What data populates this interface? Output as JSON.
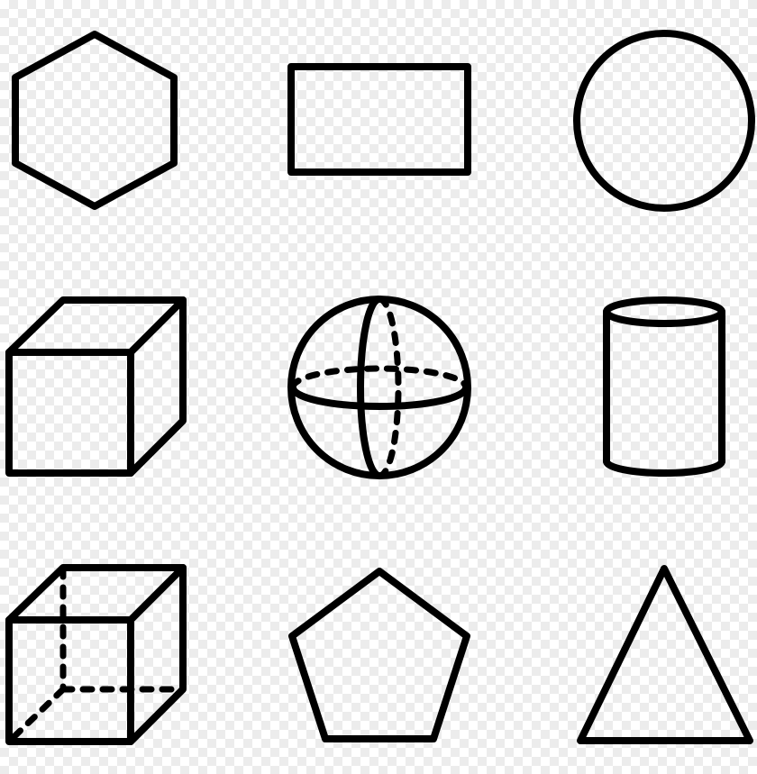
{
  "colors": {
    "stroke": "#000000",
    "background": "#ffffff",
    "checker": "#ececec"
  },
  "icons": [
    {
      "row": 1,
      "col": 1,
      "name": "hexagon-icon"
    },
    {
      "row": 1,
      "col": 2,
      "name": "rectangle-icon"
    },
    {
      "row": 1,
      "col": 3,
      "name": "circle-icon"
    },
    {
      "row": 2,
      "col": 1,
      "name": "cube-icon"
    },
    {
      "row": 2,
      "col": 2,
      "name": "sphere-icon"
    },
    {
      "row": 2,
      "col": 3,
      "name": "cylinder-icon"
    },
    {
      "row": 3,
      "col": 1,
      "name": "wireframe-cube-icon"
    },
    {
      "row": 3,
      "col": 2,
      "name": "pentagon-icon"
    },
    {
      "row": 3,
      "col": 3,
      "name": "triangle-icon"
    }
  ]
}
